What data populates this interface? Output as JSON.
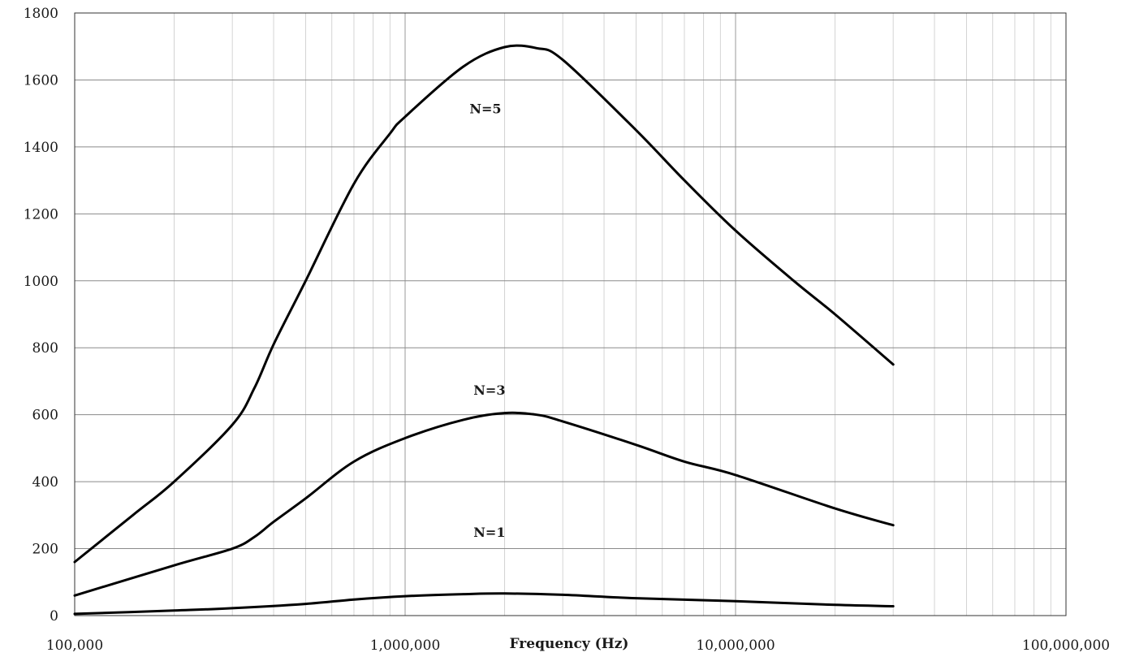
{
  "chart_data": {
    "type": "line",
    "title": "",
    "xlabel": "Frequency (Hz)",
    "ylabel": "",
    "x_scale": "log",
    "xlim": [
      100000,
      100000000
    ],
    "ylim": [
      0,
      1800
    ],
    "grid": true,
    "legend": "none",
    "x_tick_values": [
      100000,
      1000000,
      10000000,
      100000000
    ],
    "x_tick_labels": [
      "100,000",
      "1,000,000",
      "10,000,000",
      "100,000,000"
    ],
    "y_tick_values": [
      0,
      200,
      400,
      600,
      800,
      1000,
      1200,
      1400,
      1600,
      1800
    ],
    "y_tick_labels": [
      "0",
      "200",
      "400",
      "600",
      "800",
      "1000",
      "1200",
      "1400",
      "1600",
      "1800"
    ],
    "series": [
      {
        "name": "N=5",
        "x": [
          100000,
          150000,
          200000,
          300000,
          350000,
          400000,
          500000,
          700000,
          900000,
          1000000,
          1500000,
          2000000,
          2500000,
          3000000,
          5000000,
          7000000,
          10000000,
          15000000,
          20000000,
          30000000
        ],
        "y": [
          160,
          300,
          400,
          570,
          680,
          810,
          1000,
          1290,
          1440,
          1490,
          1640,
          1698,
          1695,
          1660,
          1450,
          1300,
          1150,
          1000,
          900,
          750
        ]
      },
      {
        "name": "N=3",
        "x": [
          100000,
          200000,
          300000,
          350000,
          400000,
          500000,
          700000,
          1000000,
          1500000,
          2000000,
          2500000,
          3000000,
          5000000,
          7000000,
          10000000,
          20000000,
          30000000
        ],
        "y": [
          60,
          150,
          200,
          235,
          280,
          350,
          460,
          530,
          585,
          605,
          600,
          580,
          510,
          460,
          420,
          320,
          270
        ]
      },
      {
        "name": "N=1",
        "x": [
          100000,
          200000,
          300000,
          500000,
          700000,
          1000000,
          1500000,
          2000000,
          3000000,
          5000000,
          10000000,
          20000000,
          30000000
        ],
        "y": [
          5,
          15,
          22,
          35,
          48,
          58,
          64,
          66,
          62,
          52,
          43,
          32,
          28
        ]
      }
    ],
    "annotations": [
      {
        "text": "N=5",
        "x": 1750000,
        "y": 1500
      },
      {
        "text": "N=3",
        "x": 1800000,
        "y": 660
      },
      {
        "text": "N=1",
        "x": 1800000,
        "y": 235
      }
    ]
  }
}
